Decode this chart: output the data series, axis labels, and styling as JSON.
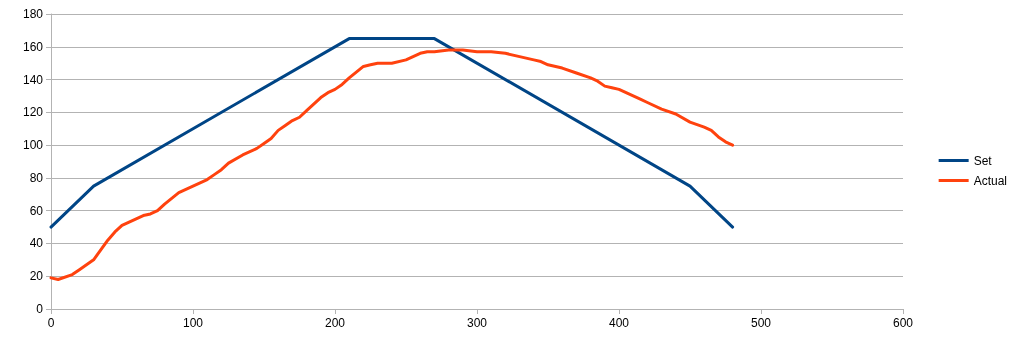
{
  "chart_data": {
    "type": "line",
    "xlim": [
      0,
      600
    ],
    "xticks": [
      0,
      100,
      200,
      300,
      400,
      500,
      600
    ],
    "ylim": [
      0,
      180
    ],
    "yticks": [
      0,
      20,
      40,
      60,
      80,
      100,
      120,
      140,
      160,
      180
    ],
    "grid": "y",
    "legend": "right",
    "marker": "none",
    "line_style": "solid",
    "series": [
      {
        "name": "Set",
        "color": "#004586",
        "x": [
          0,
          30,
          210,
          270,
          450,
          480
        ],
        "values": [
          50,
          75,
          165,
          165,
          75,
          50
        ]
      },
      {
        "name": "Actual",
        "color": "#ff420e",
        "x": [
          0,
          5,
          15,
          20,
          30,
          40,
          45,
          50,
          55,
          60,
          65,
          70,
          75,
          80,
          90,
          100,
          105,
          110,
          115,
          120,
          125,
          135,
          145,
          150,
          155,
          160,
          165,
          170,
          175,
          180,
          190,
          195,
          200,
          205,
          210,
          220,
          225,
          230,
          240,
          250,
          260,
          265,
          270,
          280,
          290,
          300,
          310,
          320,
          330,
          340,
          345,
          350,
          360,
          370,
          380,
          385,
          390,
          395,
          400,
          405,
          410,
          415,
          420,
          430,
          440,
          450,
          460,
          465,
          470,
          475,
          480
        ],
        "values": [
          19,
          18,
          21,
          24,
          30,
          42,
          47,
          51,
          53,
          55,
          57,
          58,
          60,
          64,
          71,
          75,
          77,
          79,
          82,
          85,
          89,
          94,
          98,
          101,
          104,
          109,
          112,
          115,
          117,
          121,
          129,
          132,
          134,
          137,
          141,
          148,
          149,
          150,
          150,
          152,
          156,
          157,
          157,
          158,
          158,
          157,
          157,
          156,
          154,
          152,
          151,
          149,
          147,
          144,
          141,
          139,
          136,
          135,
          134,
          132,
          130,
          128,
          126,
          122,
          119,
          114,
          111,
          109,
          105,
          102,
          100
        ]
      }
    ]
  }
}
